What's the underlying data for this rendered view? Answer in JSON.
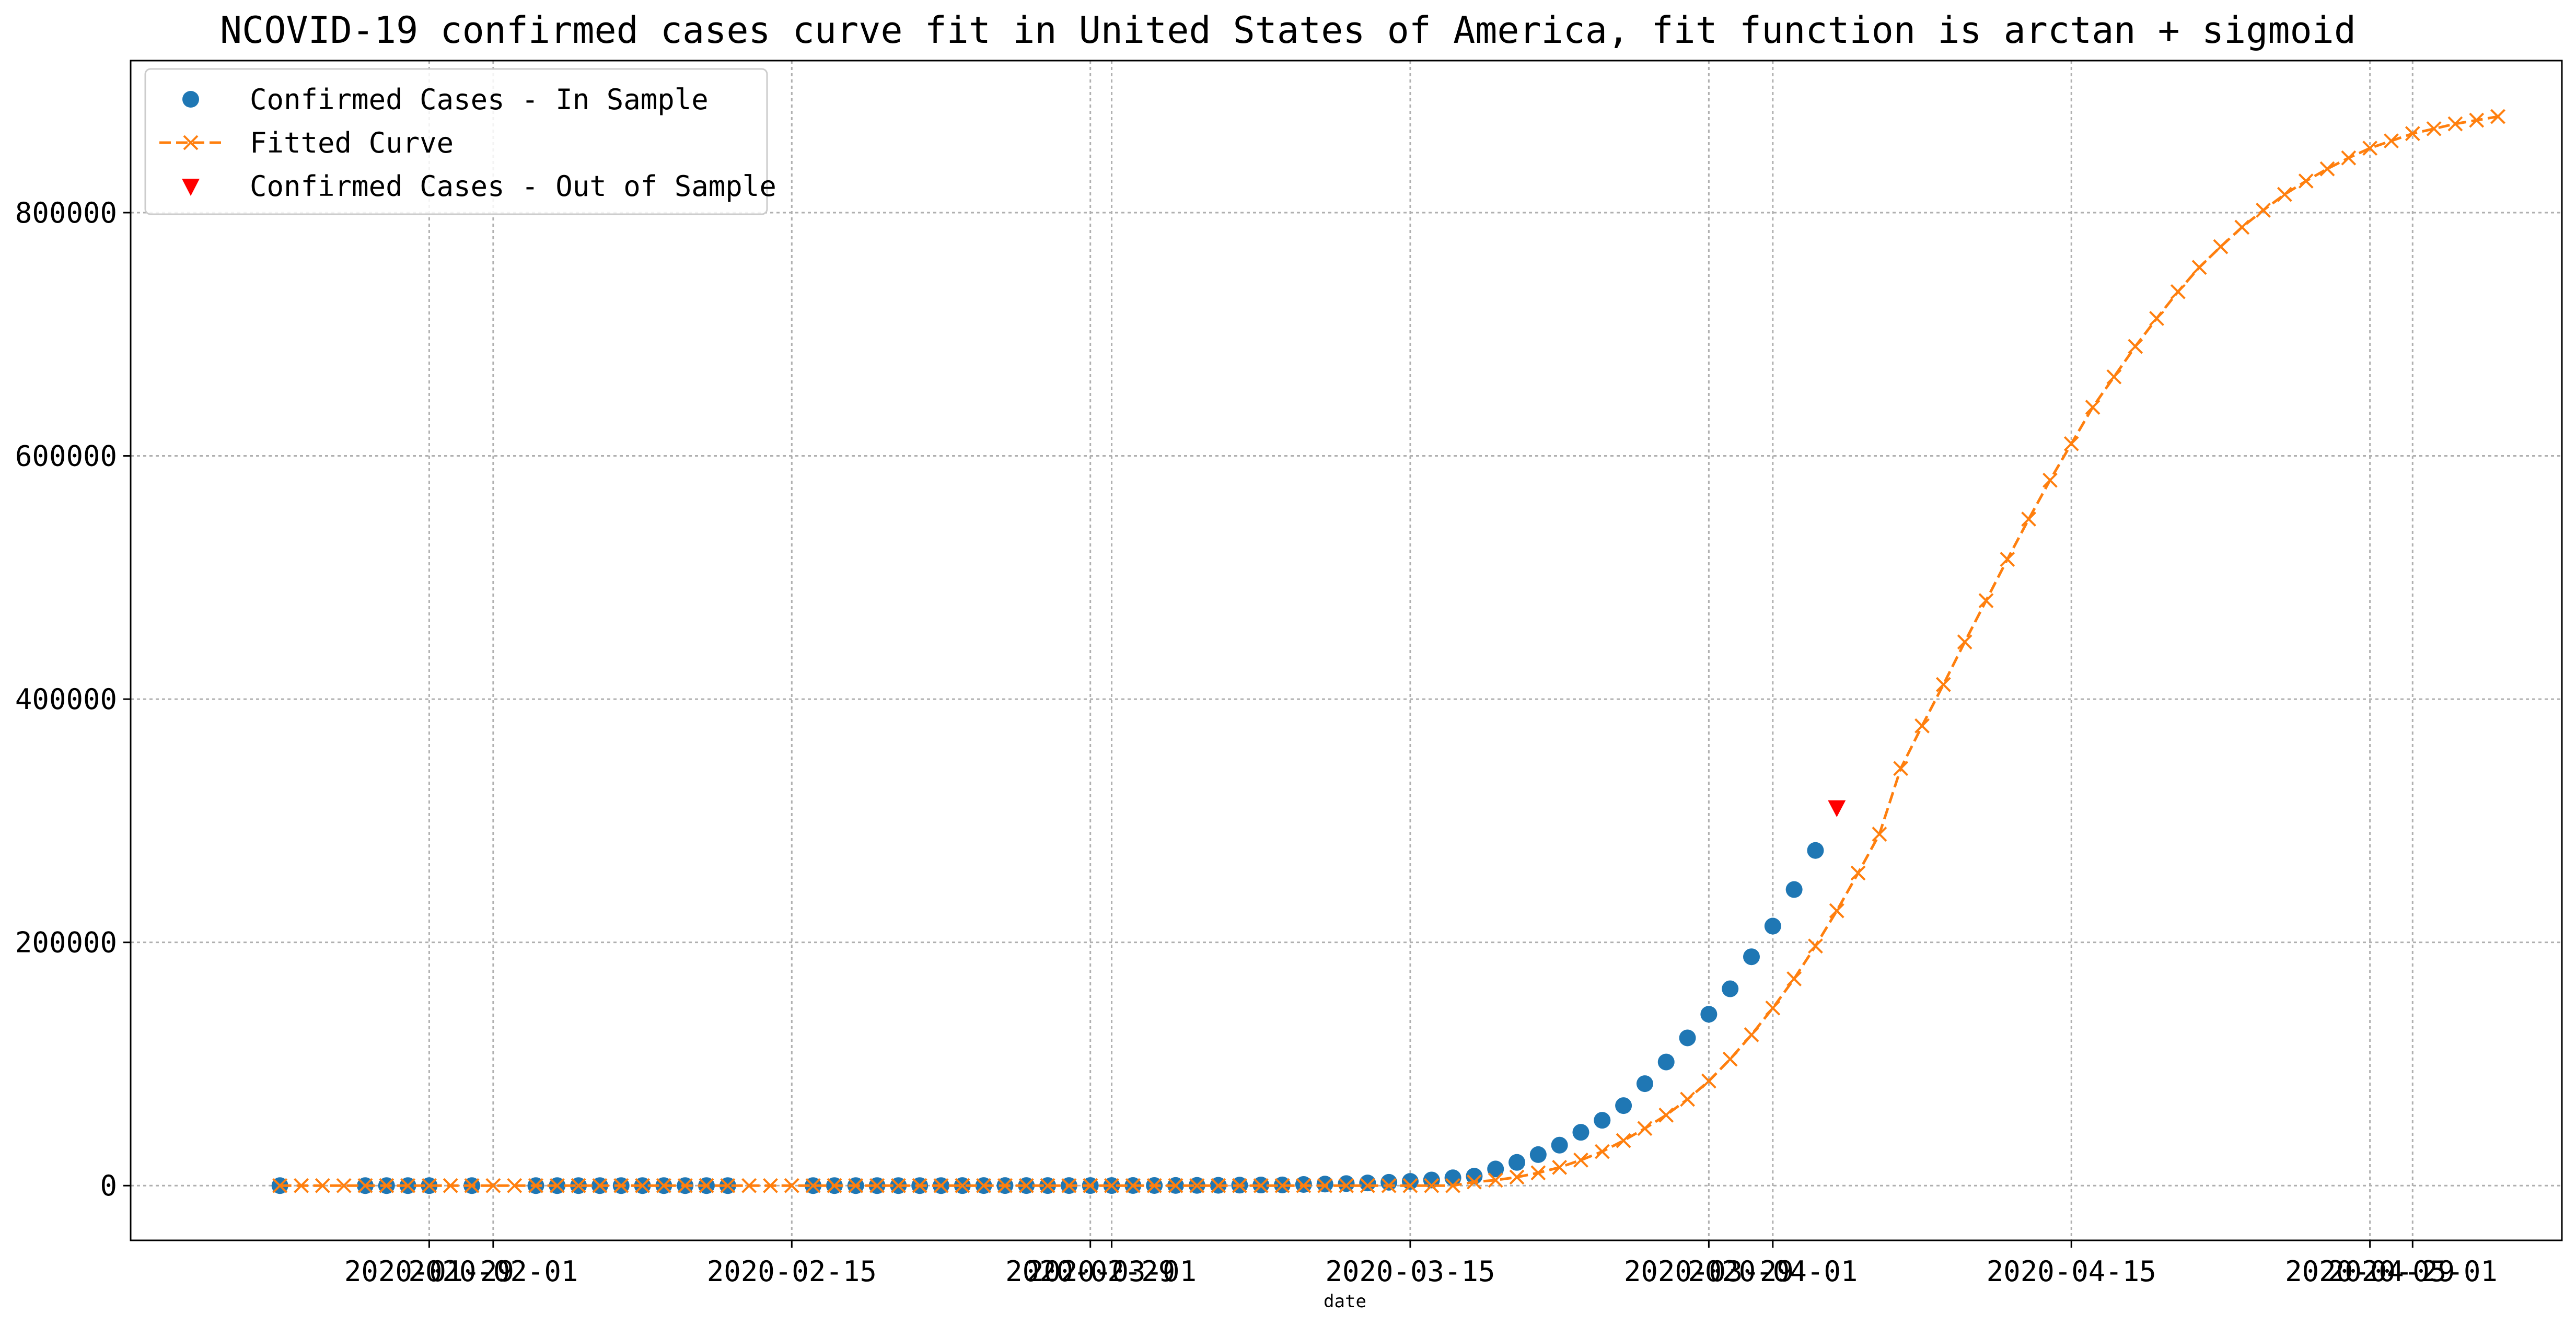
{
  "chart_data": {
    "type": "line",
    "title": "NCOVID-19 confirmed cases curve fit in United States of America, fit function is arctan + sigmoid",
    "xlabel": "date",
    "ylabel": "",
    "xlim": [
      "2020-01-15",
      "2020-05-08"
    ],
    "ylim": [
      -45000,
      925000
    ],
    "grid": true,
    "legend_position": "top-left",
    "x_ticks": [
      "2020-01-29",
      "2020-02-01",
      "2020-02-15",
      "2020-02-29",
      "2020-03-01",
      "2020-03-15",
      "2020-03-29",
      "2020-04-01",
      "2020-04-15",
      "2020-04-29",
      "2020-05-01"
    ],
    "x_tick_labels": [
      "2020-01-29",
      "2020-02-01",
      "2020-02-15",
      "2020-02-29",
      "2020-03-01",
      "2020-03-15",
      "2020-03-29",
      "2020-04-01",
      "2020-04-15",
      "2020-04-29",
      "2020-05-01"
    ],
    "y_ticks": [
      0,
      200000,
      400000,
      600000,
      800000
    ],
    "y_tick_labels": [
      "0",
      "200000",
      "400000",
      "600000",
      "800000"
    ],
    "series": [
      {
        "name": "Confirmed Cases - In Sample",
        "kind": "points",
        "marker": "circle",
        "color": "#1f77b4",
        "x": [
          "2020-01-22",
          "2020-01-26",
          "2020-01-27",
          "2020-01-28",
          "2020-01-29",
          "2020-01-31",
          "2020-02-03",
          "2020-02-04",
          "2020-02-05",
          "2020-02-06",
          "2020-02-07",
          "2020-02-08",
          "2020-02-09",
          "2020-02-10",
          "2020-02-11",
          "2020-02-12",
          "2020-02-16",
          "2020-02-17",
          "2020-02-18",
          "2020-02-19",
          "2020-02-20",
          "2020-02-21",
          "2020-02-22",
          "2020-02-23",
          "2020-02-24",
          "2020-02-25",
          "2020-02-26",
          "2020-02-27",
          "2020-02-28",
          "2020-02-29",
          "2020-03-01",
          "2020-03-02",
          "2020-03-03",
          "2020-03-04",
          "2020-03-05",
          "2020-03-06",
          "2020-03-07",
          "2020-03-08",
          "2020-03-09",
          "2020-03-10",
          "2020-03-11",
          "2020-03-12",
          "2020-03-13",
          "2020-03-14",
          "2020-03-15",
          "2020-03-16",
          "2020-03-17",
          "2020-03-18",
          "2020-03-19",
          "2020-03-20",
          "2020-03-21",
          "2020-03-22",
          "2020-03-23",
          "2020-03-24",
          "2020-03-25",
          "2020-03-26",
          "2020-03-27",
          "2020-03-28",
          "2020-03-29",
          "2020-03-30",
          "2020-03-31",
          "2020-04-01",
          "2020-04-02",
          "2020-04-03"
        ],
        "y": [
          1,
          5,
          5,
          5,
          5,
          6,
          11,
          11,
          11,
          12,
          12,
          12,
          12,
          12,
          13,
          13,
          15,
          15,
          15,
          15,
          15,
          15,
          15,
          35,
          53,
          57,
          60,
          60,
          62,
          68,
          74,
          98,
          118,
          149,
          217,
          262,
          402,
          518,
          583,
          959,
          1281,
          1663,
          2179,
          2726,
          3499,
          4632,
          6421,
          7786,
          13680,
          19101,
          25493,
          33276,
          43847,
          53740,
          65778,
          83836,
          101657,
          121465,
          140909,
          161831,
          188172,
          213372,
          243453,
          275586
        ]
      },
      {
        "name": "Fitted Curve",
        "kind": "line",
        "marker": "x",
        "color": "#ff7f0e",
        "x": [
          "2020-01-22",
          "2020-01-23",
          "2020-01-24",
          "2020-01-25",
          "2020-01-26",
          "2020-01-27",
          "2020-01-28",
          "2020-01-29",
          "2020-01-30",
          "2020-01-31",
          "2020-02-01",
          "2020-02-02",
          "2020-02-03",
          "2020-02-04",
          "2020-02-05",
          "2020-02-06",
          "2020-02-07",
          "2020-02-08",
          "2020-02-09",
          "2020-02-10",
          "2020-02-11",
          "2020-02-12",
          "2020-02-13",
          "2020-02-14",
          "2020-02-15",
          "2020-02-16",
          "2020-02-17",
          "2020-02-18",
          "2020-02-19",
          "2020-02-20",
          "2020-02-21",
          "2020-02-22",
          "2020-02-23",
          "2020-02-24",
          "2020-02-25",
          "2020-02-26",
          "2020-02-27",
          "2020-02-28",
          "2020-02-29",
          "2020-03-01",
          "2020-03-02",
          "2020-03-03",
          "2020-03-04",
          "2020-03-05",
          "2020-03-06",
          "2020-03-07",
          "2020-03-08",
          "2020-03-09",
          "2020-03-10",
          "2020-03-11",
          "2020-03-12",
          "2020-03-13",
          "2020-03-14",
          "2020-03-15",
          "2020-03-16",
          "2020-03-17",
          "2020-03-18",
          "2020-03-19",
          "2020-03-20",
          "2020-03-21",
          "2020-03-22",
          "2020-03-23",
          "2020-03-24",
          "2020-03-25",
          "2020-03-26",
          "2020-03-27",
          "2020-03-28",
          "2020-03-29",
          "2020-03-30",
          "2020-03-31",
          "2020-04-01",
          "2020-04-02",
          "2020-04-03",
          "2020-04-04",
          "2020-04-05",
          "2020-04-06",
          "2020-04-07",
          "2020-04-08",
          "2020-04-09",
          "2020-04-10",
          "2020-04-11",
          "2020-04-12",
          "2020-04-13",
          "2020-04-14",
          "2020-04-15",
          "2020-04-16",
          "2020-04-17",
          "2020-04-18",
          "2020-04-19",
          "2020-04-20",
          "2020-04-21",
          "2020-04-22",
          "2020-04-23",
          "2020-04-24",
          "2020-04-25",
          "2020-04-26",
          "2020-04-27",
          "2020-04-28",
          "2020-04-29",
          "2020-04-30",
          "2020-05-01",
          "2020-05-02",
          "2020-05-03",
          "2020-05-04",
          "2020-05-05"
        ],
        "y": [
          0,
          0,
          0,
          0,
          0,
          0,
          0,
          0,
          0,
          0,
          0,
          0,
          0,
          0,
          0,
          0,
          0,
          0,
          0,
          0,
          0,
          0,
          0,
          0,
          0,
          0,
          0,
          0,
          0,
          0,
          0,
          0,
          0,
          0,
          0,
          0,
          0,
          0,
          0,
          0,
          0,
          0,
          0,
          0,
          0,
          0,
          0,
          0,
          0,
          0,
          0,
          0,
          0,
          0,
          0,
          0,
          3000,
          4500,
          7000,
          10500,
          15000,
          21000,
          28000,
          37000,
          47000,
          58000,
          71000,
          86000,
          104000,
          124000,
          146000,
          170000,
          197000,
          226000,
          257000,
          289000,
          343000,
          378000,
          412000,
          447000,
          481000,
          515000,
          548000,
          580000,
          610000,
          640000,
          665000,
          690000,
          713000,
          735000,
          755000,
          772000,
          788000,
          802000,
          815000,
          826000,
          836000,
          845000,
          853000,
          859000,
          865000,
          869000,
          873000,
          876000,
          879000
        ]
      },
      {
        "name": "Confirmed Cases - Out of Sample",
        "kind": "points",
        "marker": "triangle-down",
        "color": "#ff0000",
        "x": [
          "2020-04-04"
        ],
        "y": [
          311000
        ]
      }
    ]
  }
}
